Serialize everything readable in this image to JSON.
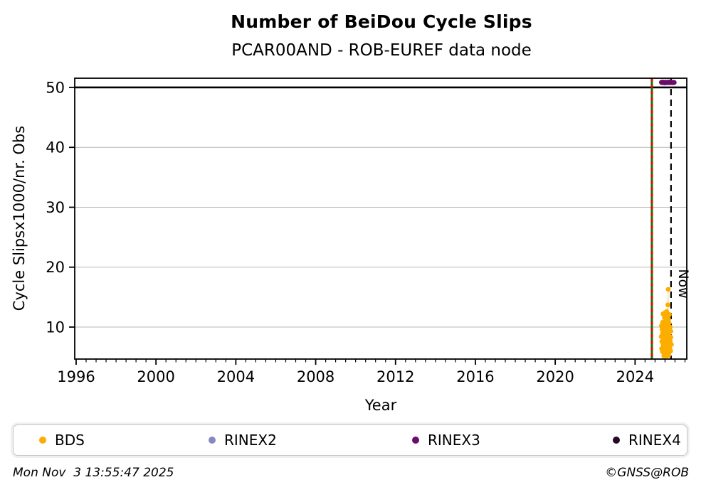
{
  "header": {
    "title": "Number of BeiDou Cycle Slips",
    "subtitle": "PCAR00AND - ROB-EUREF data node"
  },
  "footer": {
    "timestamp": "Mon Nov  3 13:55:47 2025",
    "credit": "©GNSS@ROB"
  },
  "legend": {
    "items": [
      {
        "label": "BDS",
        "color": "#FCAE00"
      },
      {
        "label": "RINEX2",
        "color": "#8787C6"
      },
      {
        "label": "RINEX3",
        "color": "#6B0B6B"
      },
      {
        "label": "RINEX4",
        "color": "#250A28"
      }
    ]
  },
  "chart_data": {
    "type": "scatter",
    "title": "Number of BeiDou Cycle Slips",
    "subtitle": "PCAR00AND - ROB-EUREF data node",
    "xlabel": "Year",
    "ylabel": "Cycle Slipsx1000/nr. Obs",
    "xlim": [
      1995.93,
      2026.59
    ],
    "ylim": [
      4.66,
      51.54
    ],
    "xticks": [
      1996,
      2000,
      2004,
      2008,
      2012,
      2016,
      2020,
      2024
    ],
    "x_minor_step": 0.5,
    "yticks": [
      10,
      20,
      30,
      40,
      50
    ],
    "grid": "horizontal",
    "grid_color": "#b6b6b6",
    "legend_position": "bottom",
    "annotations": {
      "threshold_line": {
        "y": 50,
        "color": "#000000"
      },
      "data_start_line": {
        "x": 2024.84,
        "color_solid": "#008000",
        "color_dash": "#EE0000"
      },
      "now_line": {
        "x": 2025.8,
        "label": "Now",
        "color": "#000000"
      }
    },
    "series": [
      {
        "name": "BDS",
        "color": "#FCAE00",
        "points": [
          [
            2025.66,
            16.3
          ],
          [
            2025.64,
            13.7
          ],
          [
            2025.4,
            12.2
          ],
          [
            2025.47,
            11.6
          ],
          [
            2025.52,
            12.0
          ],
          [
            2025.55,
            11.2
          ],
          [
            2025.58,
            12.6
          ],
          [
            2025.63,
            11.8
          ],
          [
            2025.68,
            11.3
          ],
          [
            2025.72,
            12.1
          ],
          [
            2025.5,
            12.4
          ],
          [
            2025.6,
            12.2
          ],
          [
            2025.32,
            10.2
          ],
          [
            2025.35,
            9.6
          ],
          [
            2025.38,
            10.8
          ],
          [
            2025.41,
            9.2
          ],
          [
            2025.44,
            10.5
          ],
          [
            2025.47,
            9.8
          ],
          [
            2025.5,
            10.9
          ],
          [
            2025.52,
            9.4
          ],
          [
            2025.55,
            10.1
          ],
          [
            2025.58,
            9.0
          ],
          [
            2025.6,
            10.6
          ],
          [
            2025.62,
            9.7
          ],
          [
            2025.65,
            10.3
          ],
          [
            2025.68,
            9.1
          ],
          [
            2025.7,
            10.7
          ],
          [
            2025.73,
            9.5
          ],
          [
            2025.76,
            10.0
          ],
          [
            2025.79,
            9.3
          ],
          [
            2025.31,
            8.4
          ],
          [
            2025.34,
            7.6
          ],
          [
            2025.37,
            8.9
          ],
          [
            2025.4,
            7.2
          ],
          [
            2025.43,
            8.1
          ],
          [
            2025.46,
            7.8
          ],
          [
            2025.49,
            8.6
          ],
          [
            2025.52,
            7.4
          ],
          [
            2025.55,
            8.2
          ],
          [
            2025.58,
            7.0
          ],
          [
            2025.61,
            8.8
          ],
          [
            2025.64,
            7.5
          ],
          [
            2025.67,
            8.0
          ],
          [
            2025.7,
            7.3
          ],
          [
            2025.73,
            8.5
          ],
          [
            2025.76,
            7.7
          ],
          [
            2025.79,
            8.3
          ],
          [
            2025.82,
            7.1
          ],
          [
            2025.33,
            6.4
          ],
          [
            2025.37,
            5.9
          ],
          [
            2025.42,
            6.8
          ],
          [
            2025.46,
            5.6
          ],
          [
            2025.5,
            6.2
          ],
          [
            2025.54,
            5.8
          ],
          [
            2025.58,
            6.6
          ],
          [
            2025.62,
            5.5
          ],
          [
            2025.66,
            6.1
          ],
          [
            2025.7,
            5.7
          ],
          [
            2025.74,
            6.5
          ],
          [
            2025.78,
            6.0
          ],
          [
            2025.44,
            5.2
          ],
          [
            2025.56,
            5.15
          ],
          [
            2025.68,
            5.25
          ]
        ]
      },
      {
        "name": "RINEX2",
        "color": "#8787C6",
        "points": []
      },
      {
        "name": "RINEX3",
        "color": "#6B0B6B",
        "points": [
          [
            2025.32,
            50.85
          ],
          [
            2025.35,
            50.8
          ],
          [
            2025.38,
            50.9
          ],
          [
            2025.41,
            50.78
          ],
          [
            2025.44,
            50.86
          ],
          [
            2025.46,
            50.8
          ],
          [
            2025.49,
            50.75
          ],
          [
            2025.52,
            50.88
          ],
          [
            2025.55,
            50.8
          ],
          [
            2025.57,
            50.83
          ],
          [
            2025.6,
            50.78
          ],
          [
            2025.63,
            50.86
          ],
          [
            2025.65,
            50.8
          ],
          [
            2025.68,
            50.9
          ],
          [
            2025.71,
            50.82
          ],
          [
            2025.74,
            50.78
          ],
          [
            2025.76,
            50.85
          ],
          [
            2025.79,
            50.8
          ],
          [
            2025.82,
            50.87
          ],
          [
            2025.85,
            50.8
          ],
          [
            2025.88,
            50.84
          ],
          [
            2025.9,
            50.79
          ],
          [
            2025.93,
            50.86
          ],
          [
            2025.96,
            50.82
          ]
        ]
      },
      {
        "name": "RINEX4",
        "color": "#250A28",
        "points": []
      }
    ]
  }
}
